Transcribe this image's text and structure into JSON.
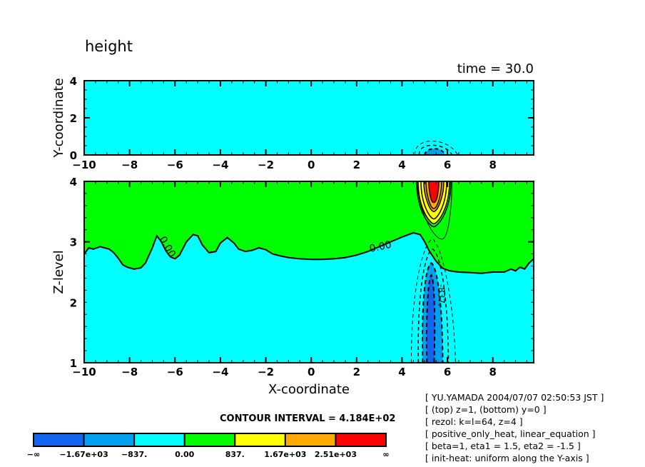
{
  "title": "height",
  "time_label": "time = 30.0",
  "contour_interval_label": "CONTOUR INTERVAL = 4.184E+02",
  "info_lines": [
    "[ YU.YAMADA 2004/07/07 02:50:53 JST ]",
    "[ (top) z=1, (bottom) y=0 ]",
    "[ rezol: k=l=64, z=4 ]",
    "[ positive_only_heat, linear_equation ]",
    "[ beta=1, eta1 = 1.5, eta2 = -1.5 ]",
    "[ init-heat: uniform along the Y-axis ]"
  ],
  "chart_data": [
    {
      "type": "heatmap",
      "panel": "top",
      "title": "height",
      "xlabel": "",
      "ylabel": "Y-coordinate",
      "xlim": [
        -10,
        9.8
      ],
      "ylim": [
        0,
        4
      ],
      "xticks": [
        "-10",
        "-8",
        "-6",
        "-4",
        "-2",
        "0",
        "2",
        "4",
        "6",
        "8"
      ],
      "yticks": [
        "0",
        "2",
        "4"
      ],
      "background_level": "-837 to 0",
      "features": [
        {
          "kind": "negative_anomaly",
          "center_x": 5.4,
          "base_y": 0,
          "top_y": 0.5,
          "fill_level": "-1.67e+03 to -837",
          "contours": "dashed"
        }
      ]
    },
    {
      "type": "heatmap",
      "panel": "bottom",
      "xlabel": "X-coordinate",
      "ylabel": "Z-level",
      "xlim": [
        -10,
        9.8
      ],
      "ylim": [
        1,
        4
      ],
      "xticks": [
        "-10",
        "-8",
        "-6",
        "-4",
        "-2",
        "0",
        "2",
        "4",
        "6",
        "8"
      ],
      "yticks": [
        "1",
        "2",
        "3",
        "4"
      ],
      "zero_contour_label": "0.00",
      "negative_contour_label": "-837.",
      "zero_contour": {
        "x": [
          -10,
          -9.8,
          -9.6,
          -9.3,
          -9.1,
          -8.9,
          -8.7,
          -8.5,
          -8.3,
          -8.1,
          -7.8,
          -7.5,
          -7.3,
          -7.0,
          -6.8,
          -6.6,
          -6.4,
          -6.2,
          -6.0,
          -5.8,
          -5.5,
          -5.2,
          -5.0,
          -4.8,
          -4.5,
          -4.2,
          -4.0,
          -3.7,
          -3.4,
          -3.2,
          -2.9,
          -2.6,
          -2.3,
          -2.0,
          -1.7,
          -1.4,
          -1.0,
          -0.5,
          0,
          0.5,
          1.0,
          1.5,
          2.0,
          2.5,
          3.0,
          3.5,
          4.0,
          4.5,
          4.8,
          5.0,
          5.2,
          5.5,
          5.8,
          6.1,
          6.5,
          7.0,
          7.5,
          8.0,
          8.5,
          8.8,
          9.0,
          9.2,
          9.4,
          9.6,
          9.8
        ],
        "z": [
          2.8,
          2.9,
          2.88,
          2.92,
          2.9,
          2.88,
          2.82,
          2.73,
          2.62,
          2.58,
          2.55,
          2.57,
          2.65,
          2.9,
          3.1,
          3.0,
          2.85,
          2.75,
          2.72,
          2.78,
          3.0,
          3.12,
          3.1,
          2.95,
          2.82,
          2.84,
          2.98,
          3.07,
          2.98,
          2.88,
          2.84,
          2.86,
          2.9,
          2.87,
          2.8,
          2.77,
          2.74,
          2.72,
          2.71,
          2.71,
          2.72,
          2.74,
          2.78,
          2.84,
          2.92,
          3.0,
          3.08,
          3.15,
          3.12,
          3.0,
          2.85,
          2.68,
          2.56,
          2.52,
          2.5,
          2.49,
          2.48,
          2.5,
          2.5,
          2.55,
          2.52,
          2.58,
          2.55,
          2.65,
          2.72
        ]
      },
      "features": [
        {
          "kind": "positive_peak",
          "center_x": 5.4,
          "top_z": 4,
          "bottom_z": 3.3,
          "max_level": "2.51e+03 to inf"
        },
        {
          "kind": "negative_column",
          "center_x": 5.4,
          "top_z": 2.65,
          "bottom_z": 1,
          "min_level": "-inf to -1.67e+03"
        }
      ]
    },
    {
      "type": "colorbar",
      "tick_labels": [
        "-∞",
        "-1.67e+03",
        "-837.",
        "0.00",
        "837.",
        "1.67e+03",
        "2.51e+03",
        "∞"
      ],
      "bins": [
        {
          "range": "-inf to -1.67e+03",
          "color": "#1464f0"
        },
        {
          "range": "-1.67e+03 to -837",
          "color": "#00a0f0"
        },
        {
          "range": "-837 to 0",
          "color": "#00ffff"
        },
        {
          "range": "0 to 837",
          "color": "#00ff00"
        },
        {
          "range": "837 to 1.67e+03",
          "color": "#ffff00"
        },
        {
          "range": "1.67e+03 to 2.51e+03",
          "color": "#ffaa00"
        },
        {
          "range": "2.51e+03 to inf",
          "color": "#ff0000"
        }
      ],
      "contour_interval": 418.4
    }
  ]
}
